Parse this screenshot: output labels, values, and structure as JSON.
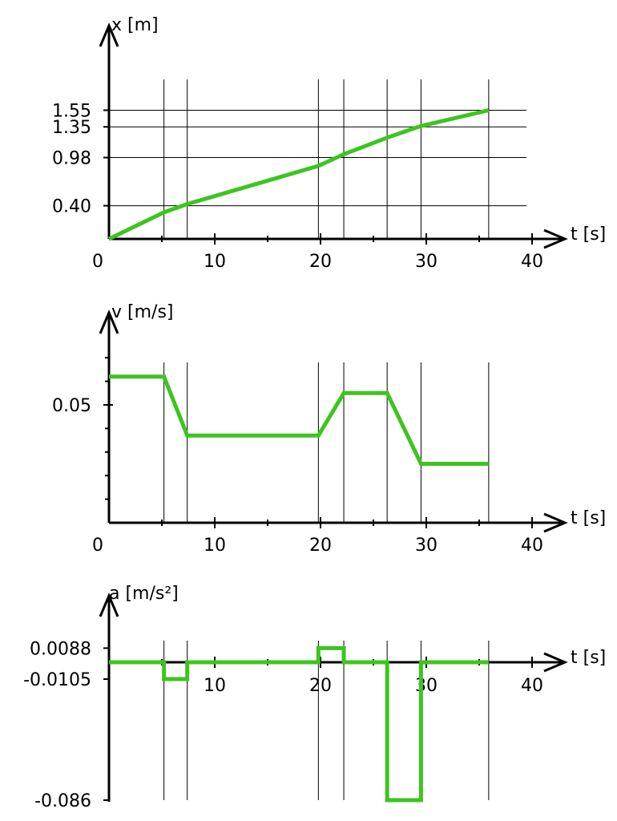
{
  "chart_data": [
    {
      "type": "line",
      "ylabel": "x [m]",
      "xlabel": "t [s]",
      "xlim": [
        0,
        40
      ],
      "x_ticks": [
        0,
        10,
        20,
        30,
        40
      ],
      "x_tick_labels": [
        "0",
        "10",
        "20",
        "30",
        "40"
      ],
      "y_ticks": [
        0.4,
        0.98,
        1.35,
        1.55
      ],
      "y_tick_labels": [
        "0.40",
        "0.98",
        "1.35",
        "1.55"
      ],
      "vertical_grid_x": [
        5.2,
        7.4,
        19.8,
        22.2,
        26.3,
        29.5,
        35.9
      ],
      "grid": true,
      "series": [
        {
          "color": "#3cc51e",
          "x": [
            0,
            5.2,
            7.4,
            19.8,
            22.2,
            26.3,
            29.5,
            35.9
          ],
          "y": [
            0,
            0.32,
            0.42,
            0.88,
            1.02,
            1.22,
            1.36,
            1.55
          ]
        }
      ]
    },
    {
      "type": "line",
      "ylabel": "v [m/s]",
      "xlabel": "t [s]",
      "xlim": [
        0,
        40
      ],
      "x_ticks": [
        0,
        10,
        20,
        30,
        40
      ],
      "x_tick_labels": [
        "0",
        "10",
        "20",
        "30",
        "40"
      ],
      "y_ticks": [
        0.05
      ],
      "y_tick_labels": [
        "0.05"
      ],
      "vertical_grid_x": [
        5.2,
        7.4,
        19.8,
        22.2,
        26.3,
        29.5,
        35.9
      ],
      "grid": true,
      "series": [
        {
          "color": "#3cc51e",
          "x": [
            0,
            5.2,
            7.4,
            19.8,
            22.2,
            26.3,
            29.5,
            35.9
          ],
          "y": [
            0.062,
            0.062,
            0.037,
            0.037,
            0.055,
            0.055,
            0.025,
            0.025
          ]
        }
      ]
    },
    {
      "type": "line",
      "ylabel": "a [m/s²]",
      "xlabel": "t [s]",
      "xlim": [
        0,
        40
      ],
      "x_ticks": [
        10,
        20,
        30,
        40
      ],
      "x_tick_labels": [
        "10",
        "20",
        "30",
        "40"
      ],
      "y_ticks": [
        0.0088,
        -0.0105,
        -0.086
      ],
      "y_tick_labels": [
        "0.0088",
        "-0.0105",
        "-0.086"
      ],
      "vertical_grid_x": [
        5.2,
        7.4,
        19.8,
        22.2,
        26.3,
        29.5,
        35.9
      ],
      "grid": true,
      "series": [
        {
          "color": "#3cc51e",
          "x": [
            0,
            5.2,
            5.2,
            7.4,
            7.4,
            19.8,
            19.8,
            22.2,
            22.2,
            26.3,
            26.3,
            29.5,
            29.5,
            35.9
          ],
          "y": [
            0,
            0,
            -0.0105,
            -0.0105,
            0,
            0,
            0.0088,
            0.0088,
            0,
            0,
            -0.086,
            -0.086,
            0,
            0
          ]
        }
      ]
    }
  ]
}
